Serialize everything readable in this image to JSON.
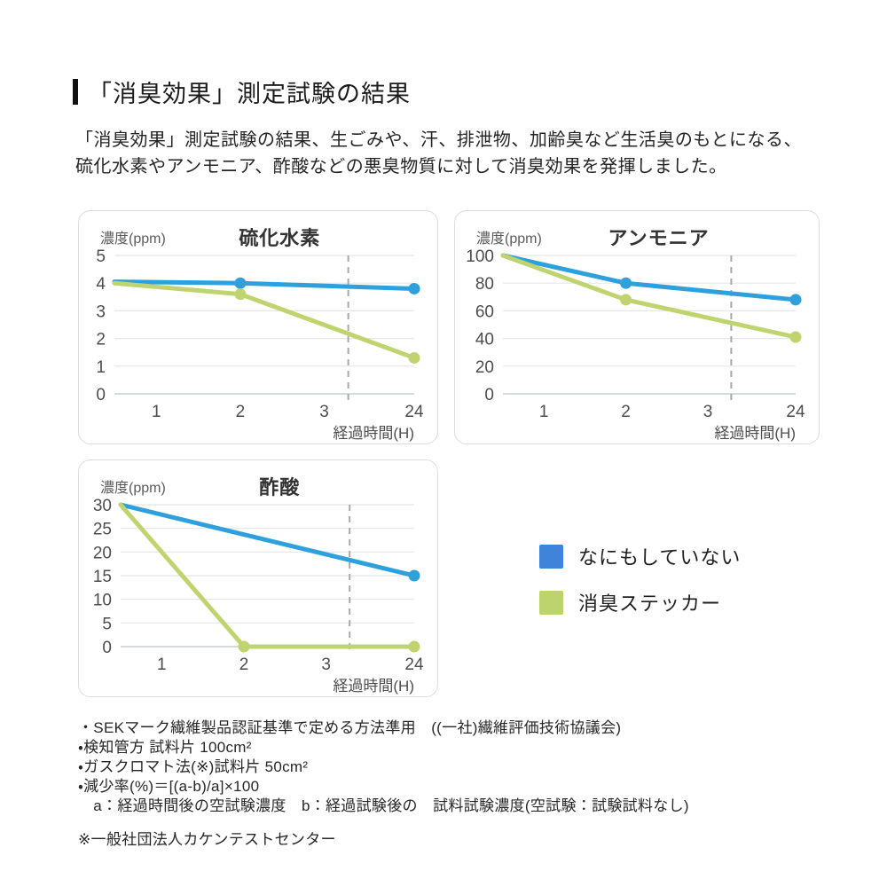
{
  "heading": {
    "title": "「消臭効果」測定試験の結果"
  },
  "intro": {
    "line1": "「消臭効果」測定試験の結果、生ごみや、汗、排泄物、加齢臭など生活臭のもとになる、",
    "line2": "硫化水素やアンモニア、酢酸などの悪臭物質に対して消臭効果を発揮しました。"
  },
  "colors": {
    "line_blue": "#2EA0DC",
    "line_green": "#BFD46F",
    "legend_blue": "#3F84D9",
    "legend_green": "#BDD36E",
    "grid": "#E4E6E8",
    "axis": "#C9CDD1",
    "break_line": "#A9A9A9",
    "title_text": "#333333",
    "tick_text": "#4D4D4D",
    "label_text": "#5A5A5A"
  },
  "legend": {
    "items": [
      {
        "label": "なにもしていない",
        "color_key": "legend_blue"
      },
      {
        "label": "消臭ステッカー",
        "color_key": "legend_green"
      }
    ]
  },
  "chart_data": [
    {
      "type": "line",
      "title": "硫化水素",
      "ylabel": "濃度(ppm)",
      "xlabel": "経過時間(H)",
      "ylim": [
        0,
        5
      ],
      "yticks": [
        5,
        4,
        3,
        2,
        1,
        0
      ],
      "xticks": [
        "1",
        "2",
        "3",
        "24"
      ],
      "x_map": {
        "0": 0,
        "1": 0.14,
        "2": 0.42,
        "3": 0.7,
        "24": 1.0
      },
      "axis_break_f": 0.78,
      "grid": true,
      "series": [
        {
          "name": "なにもしていない",
          "color_key": "line_blue",
          "points": [
            {
              "t": 0,
              "v": 4.05,
              "marker": false
            },
            {
              "t": 2,
              "v": 4.0,
              "marker": true
            },
            {
              "t": 24,
              "v": 3.8,
              "marker": true
            }
          ]
        },
        {
          "name": "消臭ステッカー",
          "color_key": "line_green",
          "points": [
            {
              "t": 0,
              "v": 4.0,
              "marker": false
            },
            {
              "t": 2,
              "v": 3.6,
              "marker": true
            },
            {
              "t": 24,
              "v": 1.3,
              "marker": true
            }
          ]
        }
      ]
    },
    {
      "type": "line",
      "title": "アンモニア",
      "ylabel": "濃度(ppm)",
      "xlabel": "経過時間(H)",
      "ylim": [
        0,
        100
      ],
      "yticks": [
        100,
        80,
        60,
        40,
        20,
        0
      ],
      "xticks": [
        "1",
        "2",
        "3",
        "24"
      ],
      "x_map": {
        "0": 0,
        "1": 0.14,
        "2": 0.42,
        "3": 0.7,
        "24": 1.0
      },
      "axis_break_f": 0.78,
      "grid": true,
      "series": [
        {
          "name": "なにもしていない",
          "color_key": "line_blue",
          "points": [
            {
              "t": 0,
              "v": 100,
              "marker": false
            },
            {
              "t": 2,
              "v": 80,
              "marker": true
            },
            {
              "t": 24,
              "v": 68,
              "marker": true
            }
          ]
        },
        {
          "name": "消臭ステッカー",
          "color_key": "line_green",
          "points": [
            {
              "t": 0,
              "v": 100,
              "marker": false
            },
            {
              "t": 2,
              "v": 68,
              "marker": true
            },
            {
              "t": 24,
              "v": 41,
              "marker": true
            }
          ]
        }
      ]
    },
    {
      "type": "line",
      "title": "酢酸",
      "ylabel": "濃度(ppm)",
      "xlabel": "経過時間(H)",
      "ylim": [
        0,
        30
      ],
      "yticks": [
        30,
        25,
        20,
        15,
        10,
        5,
        0
      ],
      "xticks": [
        "1",
        "2",
        "3",
        "24"
      ],
      "x_map": {
        "0": 0,
        "1": 0.14,
        "2": 0.42,
        "3": 0.7,
        "24": 1.0
      },
      "axis_break_f": 0.78,
      "grid": true,
      "series": [
        {
          "name": "なにもしていない",
          "color_key": "line_blue",
          "points": [
            {
              "t": 0,
              "v": 30,
              "marker": false
            },
            {
              "t": 24,
              "v": 15,
              "marker": true
            }
          ]
        },
        {
          "name": "消臭ステッカー",
          "color_key": "line_green",
          "points": [
            {
              "t": 0,
              "v": 30,
              "marker": false
            },
            {
              "t": 2,
              "v": 0,
              "marker": true
            },
            {
              "t": 24,
              "v": 0,
              "marker": true
            }
          ]
        }
      ]
    }
  ],
  "footnotes": {
    "items": [
      "・SEKマーク繊維製品認証基準で定める方法準用　((一社)繊維評価技術協議会)",
      "・検知管方 試料片 100cm²",
      "・ガスクロマト法(※)試料片 50cm²",
      "・減少率(%)＝[(a-b)/a]×100",
      "　a：経過時間後の空試験濃度　b：経過試験後の　試料試験濃度(空試験：試験試料なし)"
    ],
    "center_note": "※一般社団法人カケンテストセンター"
  }
}
